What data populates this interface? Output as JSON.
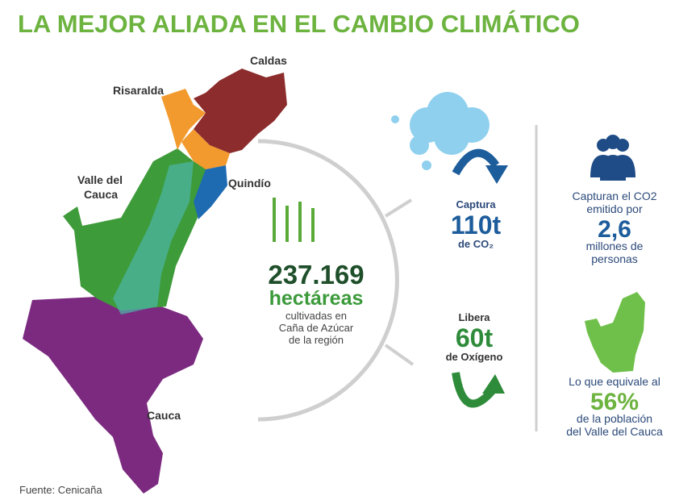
{
  "title": "LA MEJOR ALIADA EN EL CAMBIO CLIMÁTICO",
  "map": {
    "regions": {
      "caldas": "Caldas",
      "risaralda": "Risaralda",
      "valle": [
        "Valle del",
        "Cauca"
      ],
      "quindio": "Quindío",
      "cauca": "Cauca"
    }
  },
  "center": {
    "number": "237.169",
    "unit": "hectáreas",
    "lines": [
      "cultivadas en",
      "Caña de Azúcar",
      "de la región"
    ]
  },
  "capture": {
    "label": "Captura",
    "value": "110t",
    "unit": "de CO₂"
  },
  "release": {
    "label": "Libera",
    "value": "60t",
    "unit": "de Oxígeno"
  },
  "people": {
    "lines_top": [
      "Capturan el CO2",
      "emitido por"
    ],
    "value": "2,6",
    "lines_bottom": [
      "millones de",
      "personas"
    ]
  },
  "population": {
    "line_top": "Lo que equivale al",
    "value": "56%",
    "lines_bottom": [
      "de la población",
      "del Valle del Cauca"
    ]
  },
  "source": "Fuente: Cenicaña"
}
